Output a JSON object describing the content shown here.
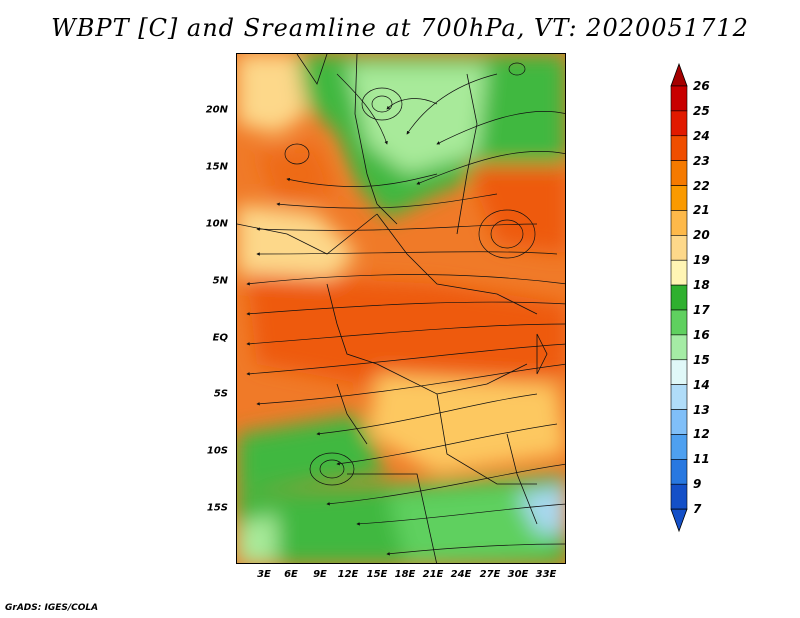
{
  "title": "WBPT [C] and Sreamline at 700hPa, VT: 2020051712",
  "footer": "GrADS: IGES/COLA",
  "lat_labels": [
    "20N",
    "15N",
    "10N",
    "5N",
    "EQ",
    "5S",
    "10S",
    "15S"
  ],
  "lon_labels": [
    "3E",
    "6E",
    "9E",
    "12E",
    "15E",
    "18E",
    "21E",
    "24E",
    "27E",
    "30E",
    "33E"
  ],
  "colorbar": {
    "labels": [
      "26",
      "25",
      "24",
      "23",
      "22",
      "21",
      "20",
      "19",
      "18",
      "17",
      "16",
      "15",
      "14",
      "13",
      "12",
      "11",
      "9",
      "7"
    ],
    "colors": [
      "#a50000",
      "#c80000",
      "#e11a00",
      "#f04e00",
      "#f57a00",
      "#fa9a00",
      "#fdb94a",
      "#fdd88a",
      "#fff5b4",
      "#2fb02f",
      "#5fd05f",
      "#a5eca5",
      "#e0f8f8",
      "#b0dcf8",
      "#80bff8",
      "#4ea0f0",
      "#2878e0",
      "#1450c8"
    ]
  }
}
